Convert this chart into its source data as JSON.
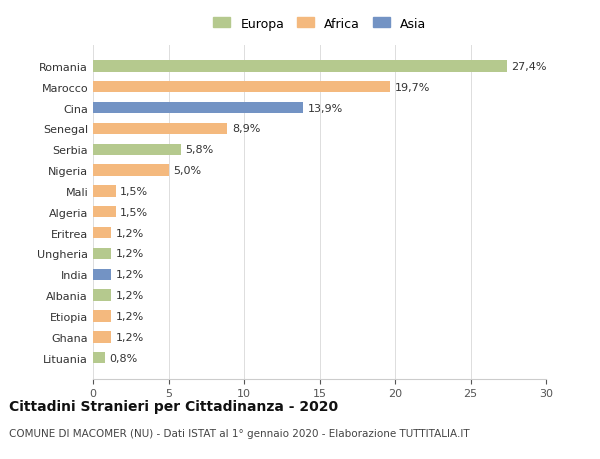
{
  "categories": [
    "Romania",
    "Marocco",
    "Cina",
    "Senegal",
    "Serbia",
    "Nigeria",
    "Mali",
    "Algeria",
    "Eritrea",
    "Ungheria",
    "India",
    "Albania",
    "Etiopia",
    "Ghana",
    "Lituania"
  ],
  "values": [
    27.4,
    19.7,
    13.9,
    8.9,
    5.8,
    5.0,
    1.5,
    1.5,
    1.2,
    1.2,
    1.2,
    1.2,
    1.2,
    1.2,
    0.8
  ],
  "labels": [
    "27,4%",
    "19,7%",
    "13,9%",
    "8,9%",
    "5,8%",
    "5,0%",
    "1,5%",
    "1,5%",
    "1,2%",
    "1,2%",
    "1,2%",
    "1,2%",
    "1,2%",
    "1,2%",
    "0,8%"
  ],
  "continents": [
    "Europa",
    "Africa",
    "Asia",
    "Africa",
    "Europa",
    "Africa",
    "Africa",
    "Africa",
    "Africa",
    "Europa",
    "Asia",
    "Europa",
    "Africa",
    "Africa",
    "Europa"
  ],
  "colors": {
    "Europa": "#b5c98e",
    "Africa": "#f4b97e",
    "Asia": "#7393c4"
  },
  "legend_labels": [
    "Europa",
    "Africa",
    "Asia"
  ],
  "legend_colors": [
    "#b5c98e",
    "#f4b97e",
    "#7393c4"
  ],
  "title": "Cittadini Stranieri per Cittadinanza - 2020",
  "subtitle": "COMUNE DI MACOMER (NU) - Dati ISTAT al 1° gennaio 2020 - Elaborazione TUTTITALIA.IT",
  "xlim": [
    0,
    30
  ],
  "xticks": [
    0,
    5,
    10,
    15,
    20,
    25,
    30
  ],
  "background_color": "#ffffff",
  "bar_height": 0.55,
  "title_fontsize": 10,
  "subtitle_fontsize": 7.5,
  "tick_fontsize": 8,
  "label_fontsize": 8,
  "legend_fontsize": 9
}
